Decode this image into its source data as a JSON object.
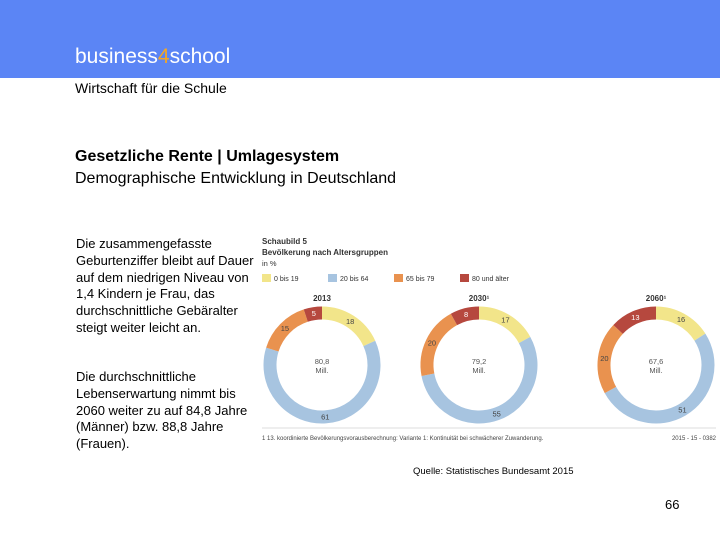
{
  "brand": {
    "part1": "business",
    "accent": "4",
    "part2": "school"
  },
  "subtitle": "Wirtschaft für die Schule",
  "title_line1": "Gesetzliche Rente  |  Umlagesystem",
  "title_line2": "Demographische Entwicklung in Deutschland",
  "text_block1": "Die zusammengefasste Geburtenziffer bleibt auf Dauer auf dem niedrigen Niveau von 1,4 Kindern je Frau, das durchschnittliche Gebäralter steigt weiter leicht an.",
  "text_block2": "Die durchschnittliche Lebenserwartung nimmt bis 2060 weiter zu auf 84,8 Jahre (Männer) bzw. 88,8 Jahre (Frauen).",
  "source": "Quelle: Statistisches Bundesamt 2015",
  "page_number": "66",
  "chart_data": {
    "type": "pie",
    "chart_label": "Schaubild 5",
    "title": "Bevölkerung nach Altersgruppen",
    "unit": "in %",
    "legend": [
      {
        "label": "0 bis 19",
        "color": "#f2e58a"
      },
      {
        "label": "20 bis 64",
        "color": "#a7c4e0"
      },
      {
        "label": "65 bis 79",
        "color": "#e9924f"
      },
      {
        "label": "80 und älter",
        "color": "#b6483e"
      }
    ],
    "charts": [
      {
        "year": "2013",
        "center_value": "80,8",
        "center_unit": "Mill.",
        "values": [
          18,
          61,
          15,
          5
        ],
        "labels": [
          "18",
          "61",
          "15",
          "5"
        ]
      },
      {
        "year": "2030¹",
        "center_value": "79,2",
        "center_unit": "Mill.",
        "values": [
          17,
          55,
          20,
          8
        ],
        "labels": [
          "17",
          "55",
          "20",
          "8"
        ]
      },
      {
        "year": "2060¹",
        "center_value": "67,6",
        "center_unit": "Mill.",
        "values": [
          16,
          51,
          20,
          13
        ],
        "labels": [
          "16",
          "51",
          "20",
          "13"
        ]
      }
    ],
    "footnote": "1 13. koordinierte Bevölkerungsvorausberechnung: Variante 1: Kontinuität bei schwächerer Zuwanderung.",
    "code": "2015 - 15 - 0382"
  }
}
